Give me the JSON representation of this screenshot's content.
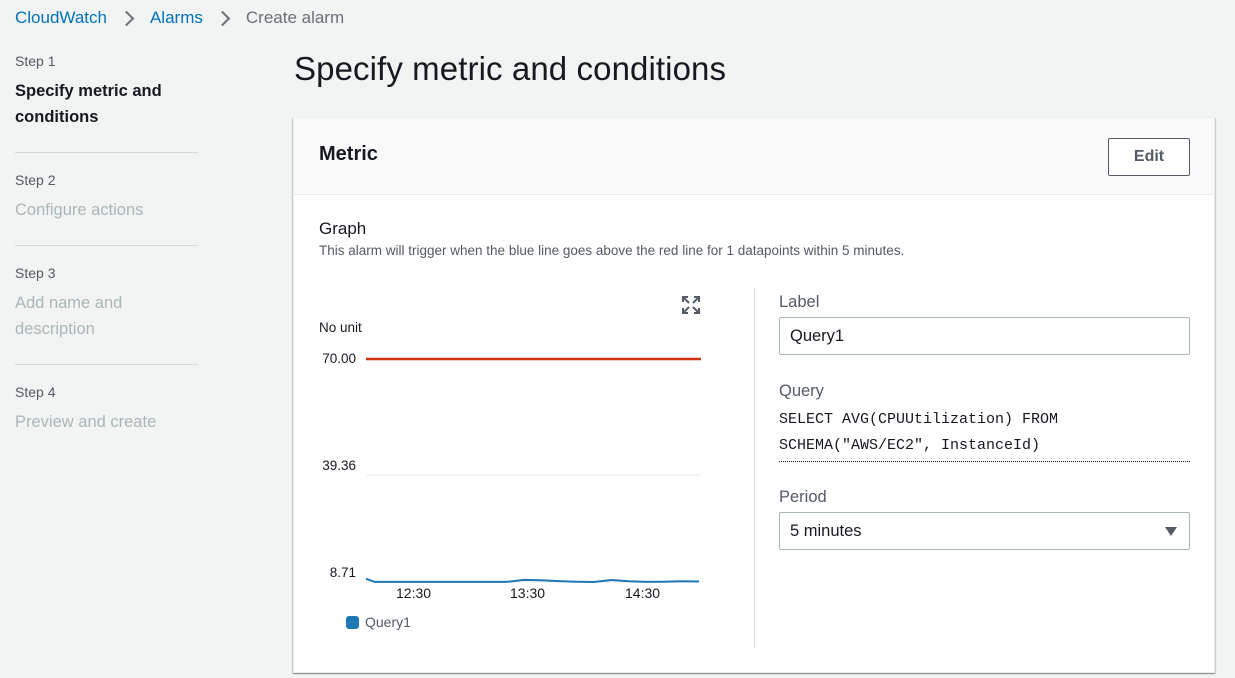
{
  "breadcrumb": {
    "items": [
      "CloudWatch",
      "Alarms",
      "Create alarm"
    ]
  },
  "steps": [
    {
      "number": "Step 1",
      "title": "Specify metric and conditions",
      "active": true
    },
    {
      "number": "Step 2",
      "title": "Configure actions",
      "active": false
    },
    {
      "number": "Step 3",
      "title": "Add name and description",
      "active": false
    },
    {
      "number": "Step 4",
      "title": "Preview and create",
      "active": false
    }
  ],
  "page": {
    "title": "Specify metric and conditions"
  },
  "metric_panel": {
    "title": "Metric",
    "edit_label": "Edit",
    "graph_label": "Graph",
    "graph_description": "This alarm will trigger when the blue line goes above the red line for 1 datapoints within 5 minutes."
  },
  "form": {
    "label_title": "Label",
    "label_value": "Query1",
    "query_title": "Query",
    "query_value": "SELECT AVG(CPUUtilization) FROM SCHEMA(\"AWS/EC2\", InstanceId)",
    "period_title": "Period",
    "period_value": "5 minutes"
  },
  "chart_data": {
    "type": "line",
    "ylabel": "No unit",
    "ytick_labels": [
      "70.00",
      "39.36",
      "8.71"
    ],
    "ylim": [
      8.71,
      70.0
    ],
    "xtick_labels": [
      "12:30",
      "13:30",
      "14:30"
    ],
    "threshold": {
      "value": 70.0,
      "color": "#d13212"
    },
    "series": [
      {
        "name": "Query1",
        "color": "#1f77b4",
        "x": [
          "11:50",
          "11:55",
          "12:00",
          "12:10",
          "12:20",
          "12:30",
          "12:40",
          "12:50",
          "13:00",
          "13:10",
          "13:20",
          "13:30",
          "13:40",
          "13:50",
          "14:00",
          "14:10",
          "14:20",
          "14:30",
          "14:40",
          "14:50",
          "15:00"
        ],
        "values": [
          9.6,
          8.75,
          8.75,
          8.74,
          8.73,
          8.74,
          8.75,
          8.73,
          8.75,
          8.74,
          9.3,
          9.2,
          8.95,
          8.78,
          8.72,
          9.25,
          8.9,
          8.74,
          8.8,
          8.9,
          8.85
        ]
      }
    ]
  }
}
